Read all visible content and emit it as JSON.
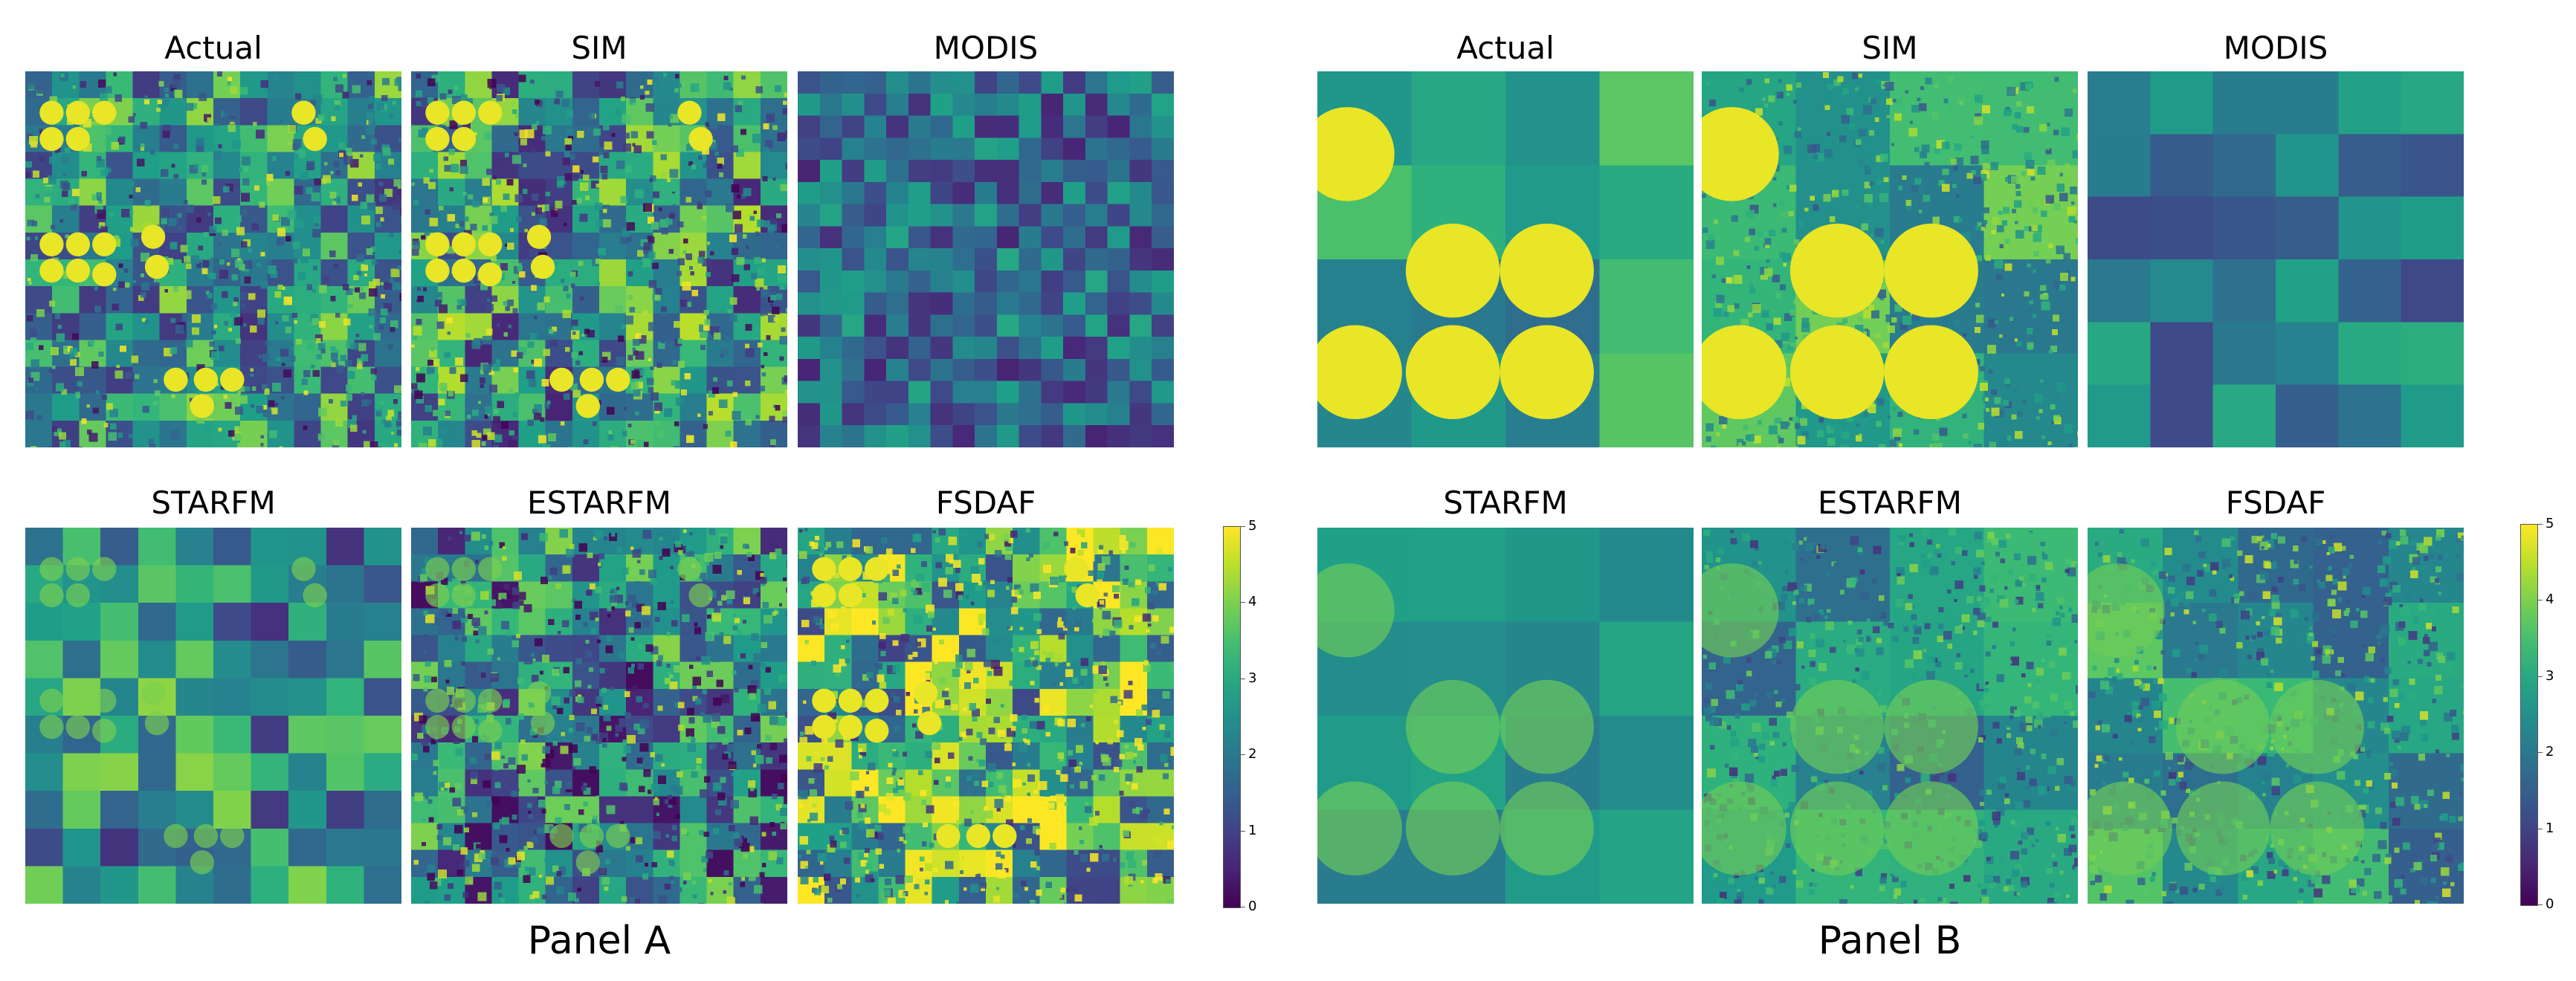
{
  "panels": [
    {
      "id": "A",
      "label": "Panel A",
      "maps": [
        {
          "title": "Actual",
          "pattern": "fields-circles"
        },
        {
          "title": "SIM",
          "pattern": "fields-circles-noisy"
        },
        {
          "title": "MODIS",
          "pattern": "coarse"
        },
        {
          "title": "STARFM",
          "pattern": "blurred"
        },
        {
          "title": "ESTARFM",
          "pattern": "dark-noisy"
        },
        {
          "title": "FSDAF",
          "pattern": "bright-noisy"
        }
      ],
      "colorbar": {
        "ticks": [
          "0",
          "1",
          "2",
          "3",
          "4",
          "5"
        ],
        "min": 0,
        "max": 5
      }
    },
    {
      "id": "B",
      "label": "Panel B",
      "maps": [
        {
          "title": "Actual",
          "pattern": "large-circles"
        },
        {
          "title": "SIM",
          "pattern": "large-circles-noisy"
        },
        {
          "title": "MODIS",
          "pattern": "very-coarse"
        },
        {
          "title": "STARFM",
          "pattern": "smooth-circles"
        },
        {
          "title": "ESTARFM",
          "pattern": "smooth-dark"
        },
        {
          "title": "FSDAF",
          "pattern": "patchy-circles"
        }
      ],
      "colorbar": {
        "ticks": [
          "0",
          "1",
          "2",
          "3",
          "4",
          "5"
        ],
        "min": 0,
        "max": 5
      }
    }
  ],
  "chart_data": {
    "type": "heatmap",
    "colormap": "viridis",
    "value_range": [
      0,
      5
    ],
    "panels": [
      "Panel A",
      "Panel B"
    ],
    "images_per_panel": [
      "Actual",
      "SIM",
      "MODIS",
      "STARFM",
      "ESTARFM",
      "FSDAF"
    ],
    "colorbar_ticks": [
      0,
      1,
      2,
      3,
      4,
      5
    ]
  },
  "colors": {
    "viridis": [
      "#440154",
      "#3b528b",
      "#21918c",
      "#5ec962",
      "#fde725"
    ]
  }
}
